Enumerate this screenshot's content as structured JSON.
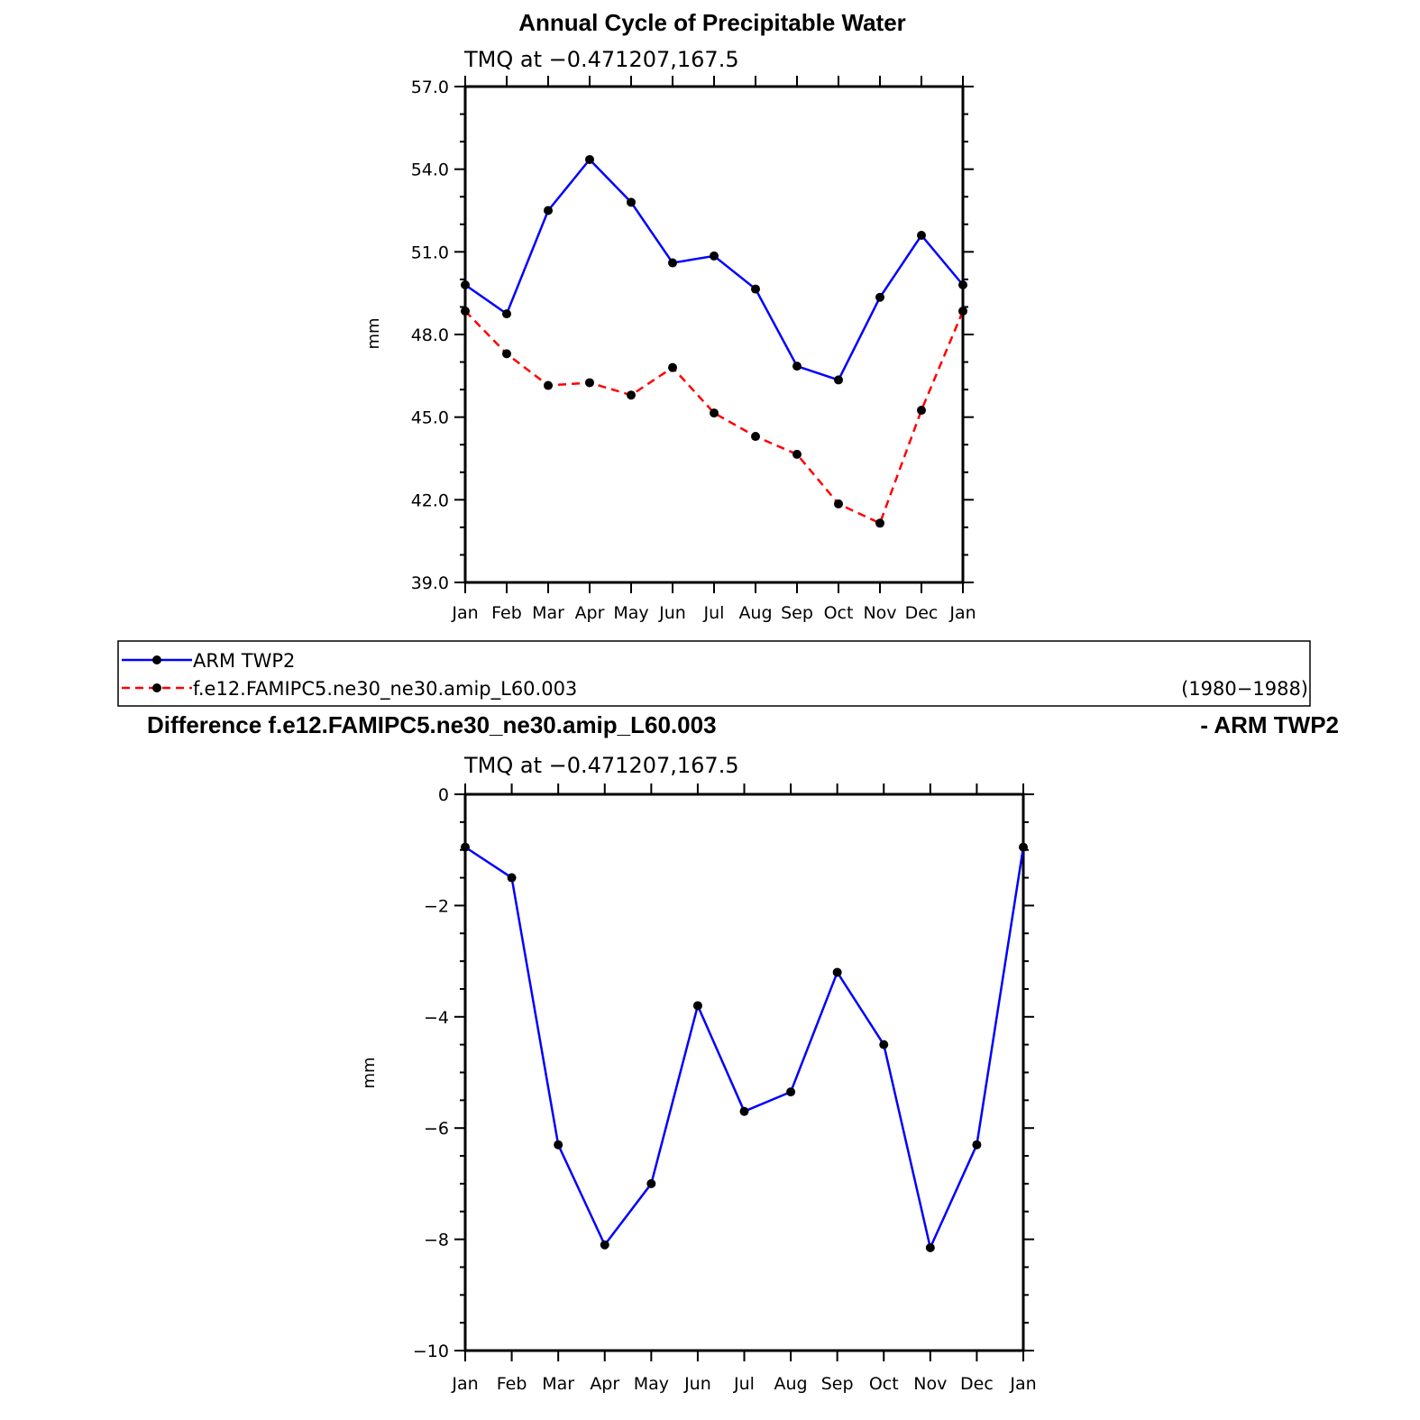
{
  "chart_data": [
    {
      "type": "line",
      "title": "Annual Cycle of Precipitable Water",
      "subtitle": "TMQ at −0.471207,167.5",
      "ylabel": "mm",
      "ylim": [
        39.0,
        57.0
      ],
      "yticks": [
        "39.0",
        "42.0",
        "45.0",
        "48.0",
        "51.0",
        "54.0",
        "57.0"
      ],
      "categories": [
        "Jan",
        "Feb",
        "Mar",
        "Apr",
        "May",
        "Jun",
        "Jul",
        "Aug",
        "Sep",
        "Oct",
        "Nov",
        "Dec",
        "Jan"
      ],
      "series": [
        {
          "name": "ARM TWP2",
          "color": "#0000ff",
          "dash": "solid",
          "values": [
            49.8,
            48.75,
            52.5,
            54.35,
            52.8,
            50.6,
            50.85,
            49.65,
            46.85,
            46.35,
            49.35,
            51.6,
            49.8
          ]
        },
        {
          "name": "f.e12.FAMIPC5.ne30_ne30.amip_L60.003",
          "color": "#ff0000",
          "dash": "dashed",
          "values": [
            48.85,
            47.3,
            46.15,
            46.25,
            45.8,
            46.8,
            45.15,
            44.3,
            43.65,
            41.85,
            41.15,
            45.25,
            48.85
          ]
        }
      ]
    },
    {
      "type": "line",
      "title": "Difference f.e12.FAMIPC5.ne30_ne30.amip_L60.003",
      "title_right": "- ARM TWP2",
      "subtitle": "TMQ at −0.471207,167.5",
      "ylabel": "mm",
      "ylim": [
        -10,
        0
      ],
      "yticks": [
        "−10",
        "−8",
        "−6",
        "−4",
        "−2",
        "0"
      ],
      "categories": [
        "Jan",
        "Feb",
        "Mar",
        "Apr",
        "May",
        "Jun",
        "Jul",
        "Aug",
        "Sep",
        "Oct",
        "Nov",
        "Dec",
        "Jan"
      ],
      "series": [
        {
          "color": "#0000ff",
          "dash": "solid",
          "values": [
            -0.95,
            -1.5,
            -6.3,
            -8.1,
            -7.0,
            -3.8,
            -5.7,
            -5.35,
            -3.2,
            -4.5,
            -8.15,
            -6.3,
            -0.95
          ]
        }
      ]
    }
  ],
  "legend": {
    "entries": [
      "ARM TWP2",
      "f.e12.FAMIPC5.ne30_ne30.amip_L60.003"
    ],
    "period": "(1980−1988)"
  }
}
